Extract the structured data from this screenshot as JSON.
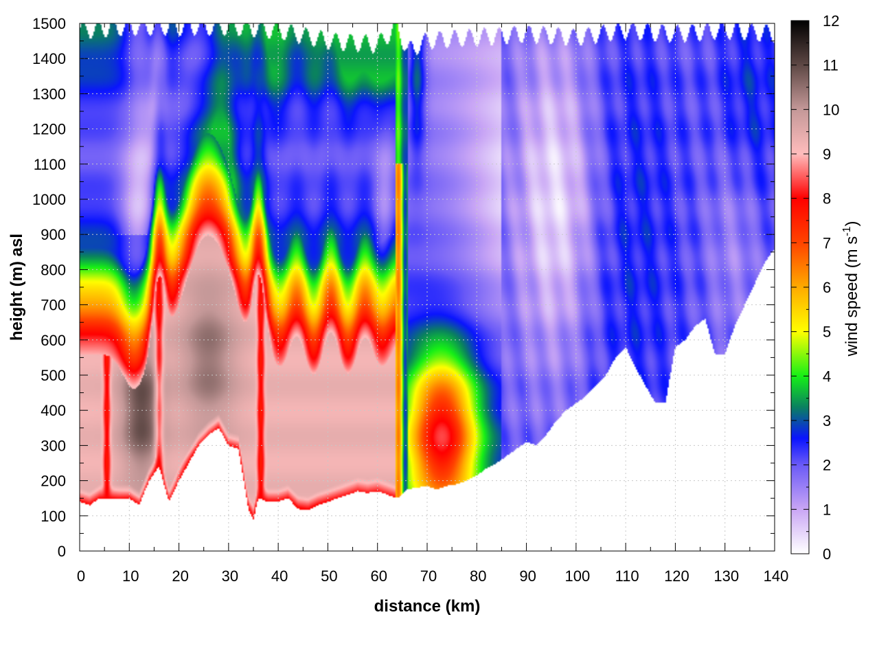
{
  "chart_data": {
    "type": "heatmap",
    "xlabel": "distance (km)",
    "ylabel": "height (m) asl",
    "xlim": [
      0,
      140
    ],
    "ylim": [
      0,
      1500
    ],
    "x_ticks": [
      "0",
      "10",
      "20",
      "30",
      "40",
      "50",
      "60",
      "70",
      "80",
      "90",
      "100",
      "110",
      "120",
      "130",
      "140"
    ],
    "y_ticks": [
      "0",
      "100",
      "200",
      "300",
      "400",
      "500",
      "600",
      "700",
      "800",
      "900",
      "1000",
      "1100",
      "1200",
      "1300",
      "1400",
      "1500"
    ],
    "grid": true,
    "colorbar": {
      "label_main": "wind speed (m s",
      "label_exp": "-1",
      "label_close": ")",
      "range": [
        0,
        12
      ],
      "ticks": [
        "0",
        "1",
        "2",
        "3",
        "4",
        "5",
        "6",
        "7",
        "8",
        "9",
        "10",
        "11",
        "12"
      ],
      "colors": [
        {
          "v": 0,
          "c": "#ffffff"
        },
        {
          "v": 1,
          "c": "#c9a6f5"
        },
        {
          "v": 2,
          "c": "#6a5af7"
        },
        {
          "v": 2.6,
          "c": "#0a14ff"
        },
        {
          "v": 3.3,
          "c": "#0a8060"
        },
        {
          "v": 4,
          "c": "#16f016"
        },
        {
          "v": 5,
          "c": "#ffff00"
        },
        {
          "v": 6,
          "c": "#ffaa00"
        },
        {
          "v": 7,
          "c": "#ff4400"
        },
        {
          "v": 8,
          "c": "#ff0000"
        },
        {
          "v": 9,
          "c": "#ffbcbc"
        },
        {
          "v": 10,
          "c": "#c49898"
        },
        {
          "v": 11,
          "c": "#5e4845"
        },
        {
          "v": 12,
          "c": "#000000"
        }
      ]
    },
    "terrain_height": {
      "x": [
        0,
        2,
        4,
        6,
        8,
        10,
        12,
        14,
        16,
        18,
        20,
        22,
        24,
        26,
        28,
        30,
        32,
        34,
        35,
        36,
        38,
        40,
        42,
        44,
        46,
        48,
        50,
        52,
        54,
        56,
        58,
        60,
        62,
        64,
        66,
        68,
        70,
        72,
        74,
        76,
        78,
        80,
        82,
        84,
        86,
        88,
        90,
        92,
        94,
        96,
        98,
        100,
        102,
        104,
        106,
        108,
        110,
        112,
        114,
        116,
        118,
        120,
        122,
        124,
        126,
        128,
        130,
        132,
        134,
        136,
        138,
        140
      ],
      "y": [
        140,
        130,
        150,
        150,
        148,
        150,
        130,
        200,
        240,
        140,
        200,
        250,
        300,
        330,
        350,
        300,
        290,
        120,
        90,
        150,
        140,
        140,
        150,
        120,
        115,
        130,
        140,
        150,
        160,
        170,
        165,
        170,
        160,
        150,
        175,
        180,
        185,
        175,
        185,
        190,
        200,
        215,
        235,
        250,
        270,
        290,
        310,
        300,
        330,
        370,
        400,
        420,
        440,
        470,
        500,
        550,
        580,
        520,
        470,
        420,
        420,
        580,
        600,
        640,
        660,
        560,
        560,
        640,
        700,
        760,
        820,
        860
      ]
    },
    "data_top_height": {
      "x": [
        0,
        10,
        20,
        30,
        40,
        50,
        60,
        64,
        66,
        70,
        80,
        90,
        100,
        110,
        120,
        130,
        140
      ],
      "y": [
        1480,
        1490,
        1490,
        1490,
        1480,
        1450,
        1440,
        1490,
        1420,
        1450,
        1460,
        1470,
        1460,
        1480,
        1470,
        1480,
        1470
      ]
    },
    "features": [
      {
        "x": 12,
        "y": 380,
        "v": 11
      },
      {
        "x": 26,
        "y": 560,
        "v": 10.5
      },
      {
        "x": 44,
        "y": 330,
        "v": 9.6
      },
      {
        "x": 6,
        "y": 260,
        "v": 9.5
      },
      {
        "x": 73,
        "y": 320,
        "v": 5.5
      },
      {
        "x": 96,
        "y": 1000,
        "v": 0.3
      },
      {
        "x": 110,
        "y": 900,
        "v": 2.4
      },
      {
        "x": 135,
        "y": 1200,
        "v": 2.6
      }
    ]
  }
}
